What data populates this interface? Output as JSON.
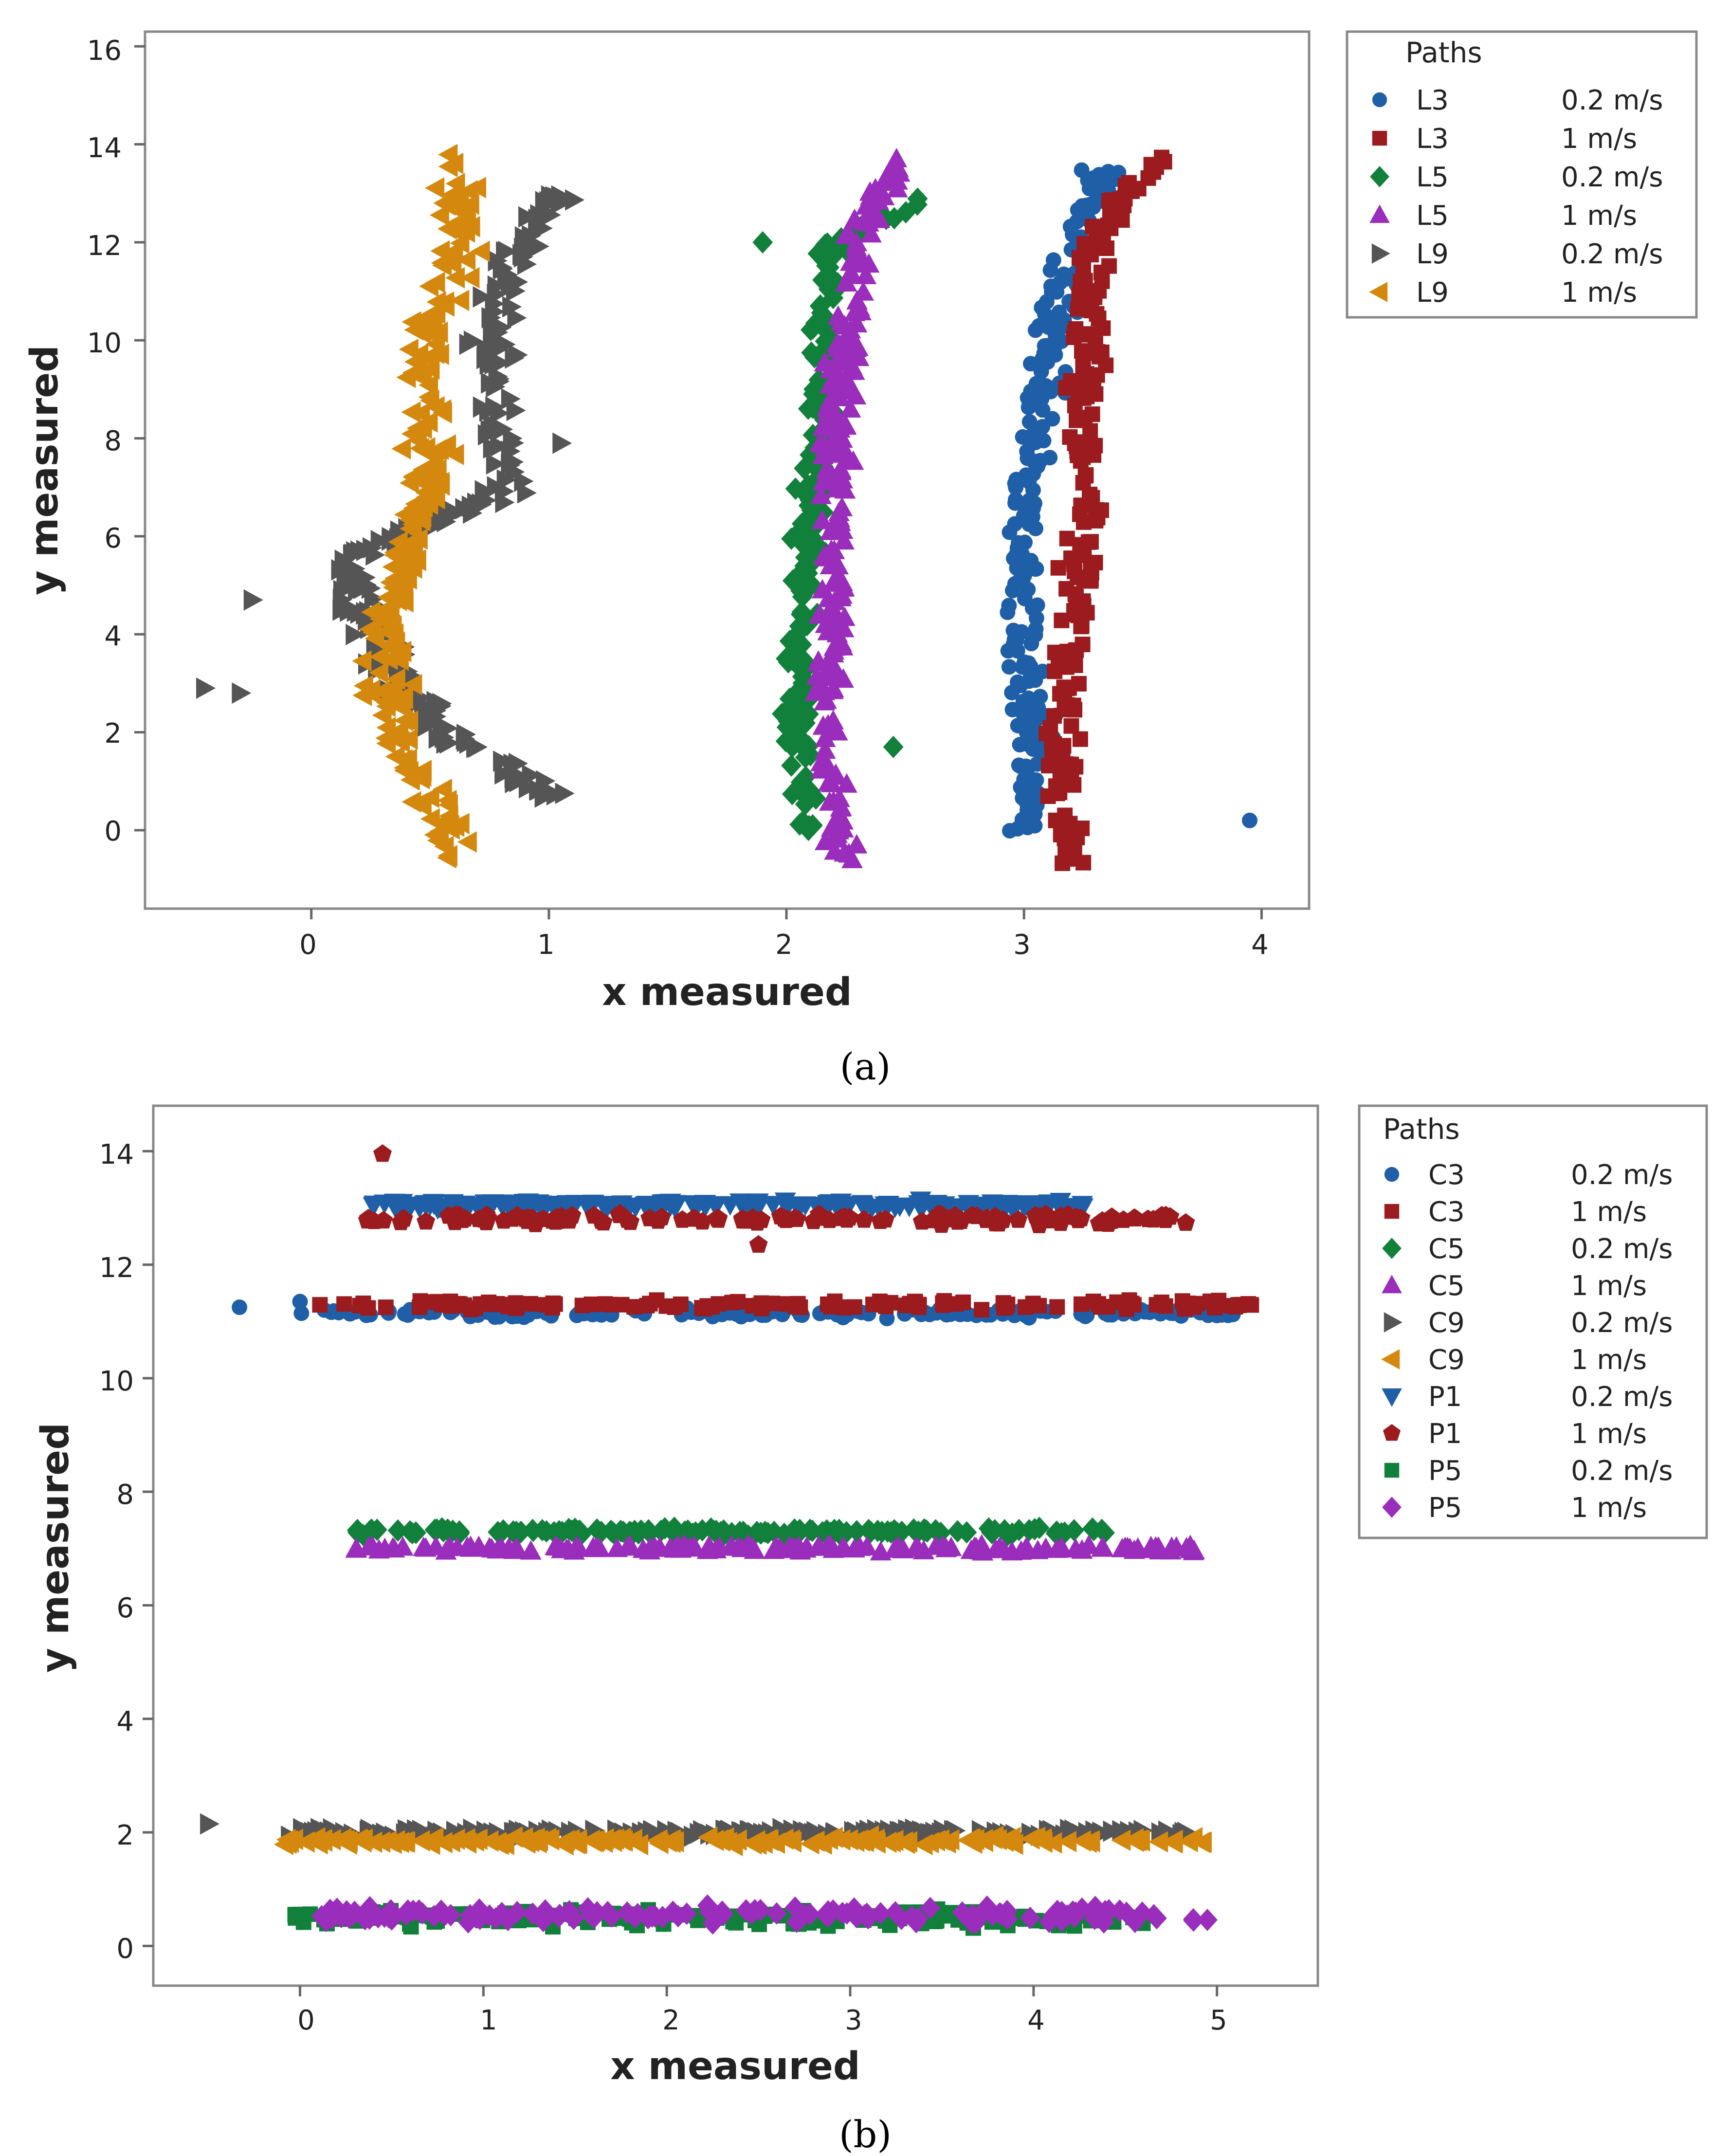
{
  "chart_data": [
    {
      "type": "scatter",
      "caption": "(a)",
      "xlabel": "x measured",
      "ylabel": "y measured",
      "xlim": [
        -0.7,
        4.2
      ],
      "ylim": [
        -1.6,
        16.3
      ],
      "xticks": [
        "0",
        "1",
        "2",
        "3",
        "4"
      ],
      "yticks": [
        "0",
        "2",
        "4",
        "6",
        "8",
        "10",
        "12",
        "14",
        "16"
      ],
      "legend_title": "Paths",
      "series": [
        {
          "path": "L3",
          "speed": "0.2 m/s",
          "color": "#1f5fa8",
          "marker": "circle",
          "x_track": [
            3.0,
            3.05,
            3.0,
            2.98,
            3.05,
            3.1,
            3.2,
            3.35
          ],
          "y_track": [
            0.0,
            2.0,
            4.0,
            6.0,
            8.0,
            10.0,
            12.0,
            13.5
          ],
          "spread": 0.08,
          "count": 220
        },
        {
          "path": "L3",
          "speed": "1 m/s",
          "color": "#9b1b1e",
          "marker": "square",
          "x_track": [
            3.2,
            3.15,
            3.2,
            3.25,
            3.25,
            3.25,
            3.3,
            3.55
          ],
          "y_track": [
            -0.6,
            2.0,
            4.0,
            6.0,
            8.0,
            10.0,
            12.0,
            13.7
          ],
          "spread": 0.07,
          "count": 220
        },
        {
          "path": "L5",
          "speed": "0.2 m/s",
          "color": "#11803a",
          "marker": "diamond",
          "x_track": [
            2.1,
            2.05,
            2.05,
            2.1,
            2.15,
            2.15,
            2.2,
            2.6
          ],
          "y_track": [
            0.0,
            2.0,
            4.0,
            6.0,
            8.0,
            10.0,
            12.0,
            13.0
          ],
          "spread": 0.06,
          "count": 200
        },
        {
          "path": "L5",
          "speed": "1 m/s",
          "color": "#9a2dbc",
          "marker": "triangle-up",
          "x_track": [
            2.25,
            2.15,
            2.2,
            2.2,
            2.2,
            2.25,
            2.3,
            2.5
          ],
          "y_track": [
            -0.7,
            2.0,
            4.0,
            6.0,
            8.0,
            10.0,
            12.0,
            13.8
          ],
          "spread": 0.06,
          "count": 230
        },
        {
          "path": "L9",
          "speed": "0.2 m/s",
          "color": "#555555",
          "marker": "triangle-right",
          "x_track": [
            1.0,
            0.7,
            0.3,
            0.15,
            0.85,
            0.75,
            0.85,
            1.05
          ],
          "y_track": [
            0.7,
            1.5,
            3.5,
            5.5,
            7.0,
            9.5,
            11.5,
            13.0
          ],
          "spread": 0.09,
          "count": 240
        },
        {
          "path": "L9",
          "speed": "1 m/s",
          "color": "#d4890e",
          "marker": "triangle-left",
          "x_track": [
            0.65,
            0.35,
            0.3,
            0.45,
            0.5,
            0.5,
            0.6,
            0.6
          ],
          "y_track": [
            -0.7,
            2.0,
            4.0,
            6.0,
            8.0,
            10.0,
            12.0,
            13.7
          ],
          "spread": 0.09,
          "count": 240
        }
      ],
      "outliers": [
        {
          "series": 0,
          "x": 3.95,
          "y": 0.2
        },
        {
          "series": 4,
          "x": -0.45,
          "y": 2.9
        },
        {
          "series": 4,
          "x": -0.3,
          "y": 2.8
        },
        {
          "series": 4,
          "x": -0.25,
          "y": 4.7
        },
        {
          "series": 4,
          "x": 1.05,
          "y": 7.9
        },
        {
          "series": 2,
          "x": 1.9,
          "y": 12.0
        },
        {
          "series": 2,
          "x": 2.45,
          "y": 1.7
        }
      ]
    },
    {
      "type": "scatter",
      "caption": "(b)",
      "xlabel": "x measured",
      "ylabel": "y measured",
      "xlim": [
        -0.8,
        5.55
      ],
      "ylim": [
        -0.7,
        14.8
      ],
      "xticks": [
        "0",
        "1",
        "2",
        "3",
        "4",
        "5"
      ],
      "yticks": [
        "0",
        "2",
        "4",
        "6",
        "8",
        "10",
        "12",
        "14"
      ],
      "legend_title": "Paths",
      "series": [
        {
          "path": "C3",
          "speed": "0.2 m/s",
          "color": "#1f5fa8",
          "marker": "circle",
          "x_range": [
            0.0,
            5.1
          ],
          "y": 11.15,
          "spread": 0.08,
          "count": 170
        },
        {
          "path": "C3",
          "speed": "1 m/s",
          "color": "#9b1b1e",
          "marker": "square",
          "x_range": [
            0.1,
            5.2
          ],
          "y": 11.3,
          "spread": 0.08,
          "count": 130
        },
        {
          "path": "C5",
          "speed": "0.2 m/s",
          "color": "#11803a",
          "marker": "diamond",
          "x_range": [
            0.3,
            4.4
          ],
          "y": 7.3,
          "spread": 0.06,
          "count": 150
        },
        {
          "path": "C5",
          "speed": "1 m/s",
          "color": "#9a2dbc",
          "marker": "triangle-up",
          "x_range": [
            0.3,
            4.9
          ],
          "y": 7.0,
          "spread": 0.06,
          "count": 150
        },
        {
          "path": "C9",
          "speed": "0.2 m/s",
          "color": "#555555",
          "marker": "triangle-right",
          "x_range": [
            -0.1,
            4.85
          ],
          "y": 2.0,
          "spread": 0.07,
          "count": 170
        },
        {
          "path": "C9",
          "speed": "1 m/s",
          "color": "#d4890e",
          "marker": "triangle-left",
          "x_range": [
            -0.1,
            4.95
          ],
          "y": 1.85,
          "spread": 0.07,
          "count": 170
        },
        {
          "path": "P1",
          "speed": "0.2 m/s",
          "color": "#1f5fa8",
          "marker": "triangle-down",
          "x_range": [
            0.4,
            4.3
          ],
          "y": 13.05,
          "spread": 0.07,
          "count": 170
        },
        {
          "path": "P1",
          "speed": "1 m/s",
          "color": "#9b1b1e",
          "marker": "pentagon",
          "x_range": [
            0.35,
            4.85
          ],
          "y": 12.8,
          "spread": 0.09,
          "count": 140
        },
        {
          "path": "P5",
          "speed": "0.2 m/s",
          "color": "#11803a",
          "marker": "square",
          "x_range": [
            -0.05,
            4.6
          ],
          "y": 0.5,
          "spread": 0.15,
          "count": 140
        },
        {
          "path": "P5",
          "speed": "1 m/s",
          "color": "#9a2dbc",
          "marker": "diamond",
          "x_range": [
            0.1,
            4.95
          ],
          "y": 0.55,
          "spread": 0.15,
          "count": 150
        }
      ],
      "outliers": [
        {
          "series": 0,
          "x": -0.33,
          "y": 11.25
        },
        {
          "series": 0,
          "x": 0.0,
          "y": 11.35
        },
        {
          "series": 7,
          "x": 0.45,
          "y": 13.95
        },
        {
          "series": 7,
          "x": 2.5,
          "y": 12.35
        },
        {
          "series": 4,
          "x": -0.5,
          "y": 2.15
        }
      ]
    }
  ]
}
